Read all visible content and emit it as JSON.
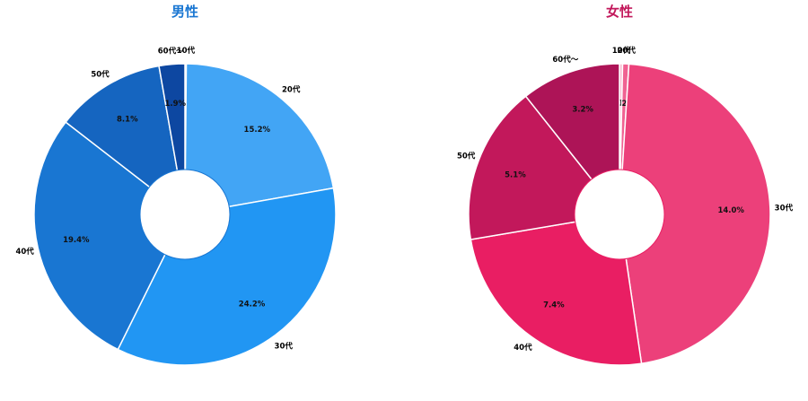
{
  "chart_data": [
    {
      "type": "pie",
      "title": "男性",
      "title_color": "#1976d2",
      "categories": [
        "10代",
        "20代",
        "30代",
        "40代",
        "50代",
        "60代〜"
      ],
      "values": [
        0.1,
        15.2,
        24.2,
        19.4,
        8.1,
        1.9
      ],
      "value_labels": [
        "0.1%",
        "15.2%",
        "24.2%",
        "19.4%",
        "8.1%",
        "1.9%"
      ],
      "colors": [
        "#90caf9",
        "#42a5f5",
        "#2196f3",
        "#1976d2",
        "#1565c0",
        "#0d47a1"
      ],
      "donut": true
    },
    {
      "type": "pie",
      "title": "女性",
      "title_color": "#c2185b",
      "categories": [
        "10代",
        "20代",
        "30代",
        "40代",
        "50代",
        "60代〜"
      ],
      "values": [
        0.1,
        0.2,
        14.0,
        7.4,
        5.1,
        3.2
      ],
      "value_labels": [
        "0.1%",
        "0.2%",
        "14.0%",
        "7.4%",
        "5.1%",
        "3.2%"
      ],
      "colors": [
        "#f8bbd0",
        "#f06292",
        "#ec407a",
        "#e91e63",
        "#c2185b",
        "#ad1457"
      ],
      "donut": true
    }
  ]
}
